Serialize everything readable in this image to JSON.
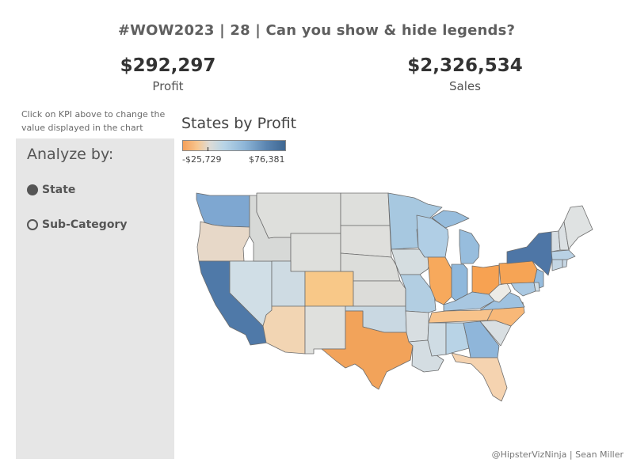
{
  "header": {
    "title": "#WOW2023 | 28 | Can you show & hide legends?"
  },
  "kpis": {
    "profit": {
      "value": "$292,297",
      "label": "Profit"
    },
    "sales": {
      "value": "$2,326,534",
      "label": "Sales"
    }
  },
  "hint": "Click on KPI above to change the value displayed in the chart",
  "analyze": {
    "title": "Analyze by:",
    "options": [
      {
        "label": "State",
        "selected": true
      },
      {
        "label": "Sub-Category",
        "selected": false
      }
    ]
  },
  "chart": {
    "title": "States by Profit",
    "legend": {
      "min_label": "-$25,729",
      "max_label": "$76,381",
      "min": -25729,
      "max": 76381
    }
  },
  "credit": "@HipsterVizNinja | Sean Miller",
  "colors": {
    "panel_bg": "#e6e6e6",
    "high_profit": "#3e6792",
    "low_profit": "#f5a05a",
    "neutral": "#dddbd6"
  }
}
